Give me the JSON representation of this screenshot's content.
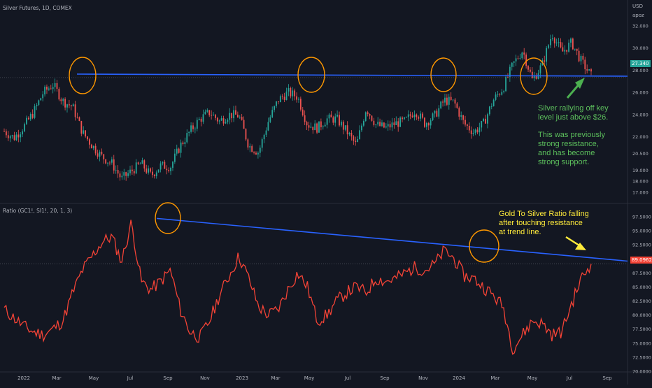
{
  "top_pane": {
    "title": "Silver Futures, 1D, COMEX",
    "currency": "USD",
    "unit": "apoz",
    "price_tag": "27.340",
    "annotation_1": "Silver rallying off key\nlevel just above $26.",
    "annotation_2": "This was previously\nstrong resistance,\nand has become\nstrong support.",
    "annotation_color": "#5cbf5c"
  },
  "bottom_pane": {
    "title": "Ratio (GC1!, SI1!, 20, 1, 3)",
    "price_tag": "89.0962",
    "annotation": "Gold To Silver Ratio falling\nafter touching resistance\nat trend line.",
    "annotation_color": "#ffeb3b"
  },
  "colors": {
    "background": "#131722",
    "up_candle": "#26a69a",
    "down_candle": "#ef5350",
    "trend_line": "#2962ff",
    "circle": "#ff9800",
    "ratio_line": "#f44336",
    "up_arrow": "#4caf50",
    "down_arrow": "#ffeb3b",
    "price_tag_bg_top": "#26a69a",
    "price_tag_bg_bottom": "#f44336"
  },
  "chart_data": [
    {
      "type": "candlestick",
      "title": "Silver Futures, 1D, COMEX",
      "ylabel": "USD apoz",
      "ylim": [
        16.5,
        32.5
      ],
      "y_ticks": [
        "32.000",
        "30.000",
        "28.000",
        "26.000",
        "24.000",
        "22.000",
        "20.500",
        "19.000",
        "18.000",
        "17.000"
      ],
      "x_ticks": [
        "2022",
        "Mar",
        "May",
        "Jul",
        "Sep",
        "Nov",
        "2023",
        "Mar",
        "May",
        "Jul",
        "Sep",
        "Nov",
        "2024",
        "Mar",
        "May",
        "Jul",
        "Sep"
      ],
      "key_level": 26.2,
      "last_price": 27.34,
      "closes": [
        22.5,
        21.9,
        22.9,
        24.2,
        26.0,
        26.7,
        25.2,
        24.7,
        22.4,
        21.2,
        20.2,
        19.6,
        18.2,
        18.9,
        19.6,
        18.5,
        19.4,
        19.3,
        21.2,
        22.5,
        23.6,
        24.2,
        23.4,
        24.0,
        23.9,
        21.2,
        20.6,
        23.4,
        25.3,
        26.0,
        25.6,
        23.1,
        22.8,
        23.6,
        23.6,
        22.5,
        21.2,
        24.6,
        23.1,
        22.8,
        23.2,
        23.4,
        24.4,
        23.2,
        23.9,
        25.3,
        25.1,
        23.2,
        22.4,
        23.2,
        25.3,
        26.4,
        28.5,
        29.8,
        27.1,
        28.5,
        31.3,
        29.6,
        30.5,
        28.8,
        27.5
      ],
      "highs_approx_range": [
        17.6,
        31.9
      ]
    },
    {
      "type": "line",
      "title": "Ratio (GC1!, SI1!, 20, 1, 3)",
      "series": [
        {
          "name": "Ratio (GC1!, SI1!, 20, 1, 3)",
          "values": [
            81.0,
            79.5,
            78.0,
            77.0,
            76.5,
            77.5,
            79.0,
            84.0,
            88.0,
            90.5,
            93.0,
            94.0,
            89.5,
            96.5,
            86.0,
            84.5,
            86.0,
            88.0,
            81.0,
            77.0,
            76.0,
            79.0,
            83.5,
            87.0,
            90.5,
            86.5,
            81.5,
            80.0,
            81.0,
            84.5,
            87.5,
            85.0,
            79.0,
            80.0,
            82.5,
            84.0,
            85.0,
            84.0,
            86.5,
            86.0,
            86.5,
            87.5,
            88.5,
            88.0,
            89.0,
            91.5,
            90.0,
            87.0,
            86.5,
            85.0,
            83.5,
            81.5,
            74.0,
            76.5,
            79.0,
            78.5,
            76.5,
            77.0,
            82.0,
            86.5,
            89.1
          ]
        }
      ],
      "ylim": [
        70.0,
        99.0
      ],
      "y_ticks": [
        "97.5000",
        "95.0000",
        "92.5000",
        "90.0000",
        "87.5000",
        "85.0000",
        "82.5000",
        "80.0000",
        "77.5000",
        "75.0000",
        "72.5000",
        "70.0000"
      ],
      "resistance_line": {
        "start": 97.2,
        "end": 89.6
      },
      "last_value": 89.0962
    }
  ]
}
